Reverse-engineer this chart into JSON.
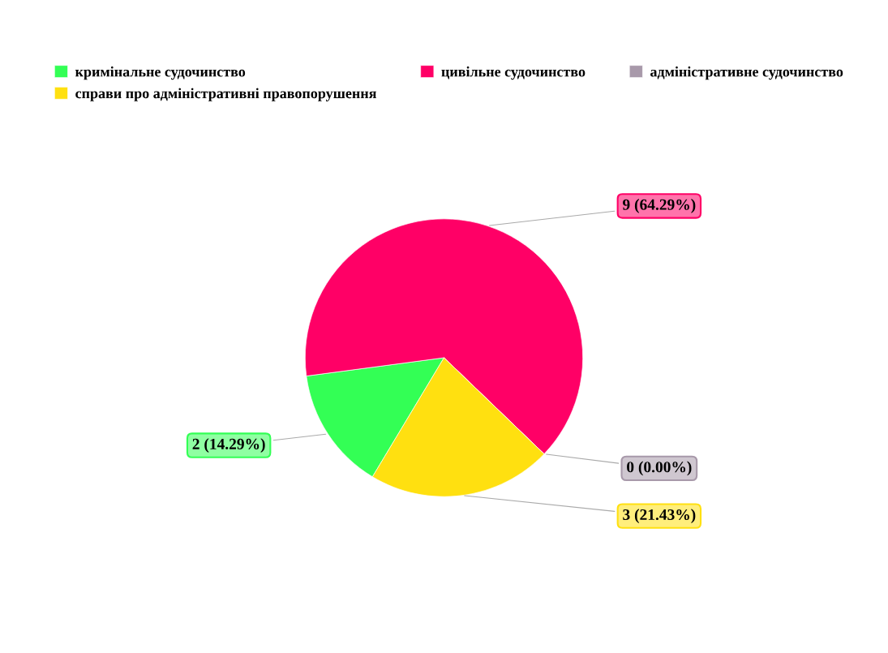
{
  "chart_data": {
    "type": "pie",
    "categories": [
      "кримінальне судочинство",
      "цивільне судочинство",
      "адміністративне судочинство",
      "справи про адміністративні правопорушення"
    ],
    "values": [
      2,
      9,
      0,
      3
    ],
    "colors": [
      "#33ff55",
      "#ff0066",
      "#a899aa",
      "#ffe010"
    ],
    "value_labels": [
      "2 (14.29%)",
      "9 (64.29%)",
      "0 (0.00%)",
      "3 (21.43%)"
    ],
    "legend": "top left"
  }
}
